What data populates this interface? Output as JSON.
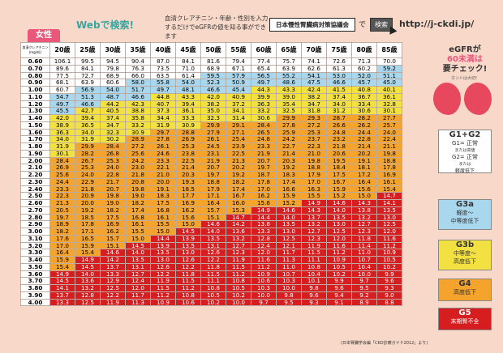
{
  "header": {
    "web_label": "Webで検索!",
    "instruction_line1": "血清クレアチニン・年齢・性別を入力",
    "instruction_line2": "するだけでeGFRの値を知る事ができます",
    "search_box_text": "日本慢性腎臓病対策協議会",
    "de_text": "で",
    "search_button": "検索",
    "url": "http://j-ckdi.jp/"
  },
  "sex_tab": "女性",
  "table": {
    "corner_line1": "血清クレアチニン",
    "corner_line2": "(mg/dL)",
    "ages": [
      "20歳",
      "25歳",
      "30歳",
      "35歳",
      "40歳",
      "45歳",
      "50歳",
      "55歳",
      "60歳",
      "65歳",
      "70歳",
      "75歳",
      "80歳",
      "85歳"
    ],
    "rows": [
      {
        "cr": "0.60",
        "v": [
          "106.1",
          "99.5",
          "94.5",
          "90.4",
          "87.0",
          "84.1",
          "81.6",
          "79.4",
          "77.4",
          "75.7",
          "74.1",
          "72.6",
          "71.3",
          "70.0"
        ]
      },
      {
        "cr": "0.70",
        "v": [
          "89.6",
          "84.1",
          "79.8",
          "76.3",
          "73.5",
          "71.0",
          "68.9",
          "67.1",
          "65.4",
          "63.9",
          "62.6",
          "61.3",
          "60.2",
          "59.2"
        ]
      },
      {
        "cr": "0.80",
        "v": [
          "77.5",
          "72.7",
          "68.9",
          "66.0",
          "63.5",
          "61.4",
          "59.5",
          "57.9",
          "56.5",
          "55.2",
          "54.1",
          "53.0",
          "52.0",
          "51.1"
        ]
      },
      {
        "cr": "0.90",
        "v": [
          "68.1",
          "63.9",
          "60.6",
          "58.0",
          "55.8",
          "54.0",
          "52.3",
          "50.9",
          "49.7",
          "48.6",
          "47.5",
          "46.6",
          "45.7",
          "45.0"
        ]
      },
      {
        "cr": "1.00",
        "v": [
          "60.7",
          "56.9",
          "54.0",
          "51.7",
          "49.7",
          "48.1",
          "46.6",
          "45.4",
          "44.3",
          "43.3",
          "42.4",
          "41.5",
          "40.8",
          "40.1"
        ]
      },
      {
        "cr": "1.10",
        "v": [
          "54.7",
          "51.3",
          "48.7",
          "46.6",
          "44.8",
          "43.3",
          "42.0",
          "40.9",
          "39.9",
          "39.0",
          "38.2",
          "37.4",
          "36.7",
          "36.1"
        ]
      },
      {
        "cr": "1.20",
        "v": [
          "49.7",
          "46.6",
          "44.2",
          "42.3",
          "40.7",
          "39.4",
          "38.2",
          "37.2",
          "36.3",
          "35.4",
          "34.7",
          "34.0",
          "33.4",
          "32.8"
        ]
      },
      {
        "cr": "1.30",
        "v": [
          "45.5",
          "42.7",
          "40.5",
          "38.8",
          "37.3",
          "36.1",
          "35.0",
          "34.1",
          "33.2",
          "32.5",
          "31.8",
          "31.2",
          "30.6",
          "30.1"
        ]
      },
      {
        "cr": "1.40",
        "v": [
          "42.0",
          "39.4",
          "37.4",
          "35.8",
          "34.4",
          "33.3",
          "32.3",
          "31.4",
          "30.6",
          "29.9",
          "29.3",
          "28.7",
          "28.2",
          "27.7"
        ]
      },
      {
        "cr": "1.50",
        "v": [
          "38.9",
          "36.5",
          "34.7",
          "33.2",
          "31.9",
          "30.9",
          "29.9",
          "29.1",
          "28.4",
          "27.8",
          "27.2",
          "26.6",
          "26.2",
          "25.7"
        ]
      },
      {
        "cr": "1.60",
        "v": [
          "36.3",
          "34.0",
          "32.3",
          "30.9",
          "29.7",
          "28.8",
          "27.9",
          "27.1",
          "26.5",
          "25.9",
          "25.3",
          "24.8",
          "24.4",
          "24.0"
        ]
      },
      {
        "cr": "1.70",
        "v": [
          "34.0",
          "31.9",
          "30.2",
          "28.9",
          "27.8",
          "26.9",
          "26.1",
          "25.4",
          "24.8",
          "24.2",
          "23.7",
          "23.2",
          "22.8",
          "22.4"
        ]
      },
      {
        "cr": "1.80",
        "v": [
          "31.9",
          "29.9",
          "28.4",
          "27.2",
          "26.1",
          "25.3",
          "24.5",
          "23.9",
          "23.3",
          "22.7",
          "22.3",
          "21.8",
          "21.4",
          "21.1"
        ]
      },
      {
        "cr": "1.90",
        "v": [
          "30.1",
          "28.2",
          "26.8",
          "25.6",
          "24.6",
          "23.8",
          "23.1",
          "22.5",
          "21.9",
          "21.4",
          "21.0",
          "20.6",
          "20.2",
          "19.8"
        ]
      },
      {
        "cr": "2.00",
        "v": [
          "28.4",
          "26.7",
          "25.3",
          "24.2",
          "23.3",
          "22.5",
          "21.9",
          "21.3",
          "20.7",
          "20.3",
          "19.8",
          "19.5",
          "19.1",
          "18.8"
        ]
      },
      {
        "cr": "2.10",
        "v": [
          "26.9",
          "25.3",
          "24.0",
          "23.0",
          "22.1",
          "21.4",
          "20.7",
          "20.2",
          "19.7",
          "19.2",
          "18.8",
          "18.4",
          "18.1",
          "17.8"
        ]
      },
      {
        "cr": "2.20",
        "v": [
          "25.6",
          "24.0",
          "22.8",
          "21.8",
          "21.0",
          "20.3",
          "19.7",
          "19.2",
          "18.7",
          "18.3",
          "17.9",
          "17.5",
          "17.2",
          "16.9"
        ]
      },
      {
        "cr": "2.30",
        "v": [
          "24.4",
          "22.9",
          "21.7",
          "20.8",
          "20.0",
          "19.3",
          "18.8",
          "18.2",
          "17.8",
          "17.4",
          "17.0",
          "16.7",
          "16.4",
          "16.1"
        ]
      },
      {
        "cr": "2.40",
        "v": [
          "23.3",
          "21.8",
          "20.7",
          "19.8",
          "19.1",
          "18.5",
          "17.9",
          "17.4",
          "17.0",
          "16.6",
          "16.3",
          "15.9",
          "15.6",
          "15.4"
        ]
      },
      {
        "cr": "2.50",
        "v": [
          "22.3",
          "20.9",
          "19.8",
          "19.0",
          "18.3",
          "17.7",
          "17.1",
          "16.7",
          "16.2",
          "15.9",
          "15.5",
          "15.2",
          "15.0",
          "14.7"
        ]
      },
      {
        "cr": "2.60",
        "v": [
          "21.3",
          "20.0",
          "19.0",
          "18.2",
          "17.5",
          "16.9",
          "16.4",
          "16.0",
          "15.6",
          "15.2",
          "14.9",
          "14.6",
          "14.3",
          "14.1"
        ]
      },
      {
        "cr": "2.70",
        "v": [
          "20.5",
          "19.2",
          "18.2",
          "17.4",
          "16.8",
          "16.2",
          "15.7",
          "15.3",
          "14.9",
          "14.6",
          "14.3",
          "14.0",
          "13.8",
          "13.5"
        ]
      },
      {
        "cr": "2.80",
        "v": [
          "19.7",
          "18.5",
          "17.5",
          "16.8",
          "16.1",
          "15.6",
          "15.1",
          "14.7",
          "14.4",
          "14.0",
          "13.7",
          "13.5",
          "13.2",
          "13.0"
        ]
      },
      {
        "cr": "2.90",
        "v": [
          "18.9",
          "17.8",
          "16.9",
          "16.1",
          "15.5",
          "15.0",
          "14.6",
          "14.2",
          "13.8",
          "13.5",
          "13.2",
          "13.0",
          "12.7",
          "12.5"
        ]
      },
      {
        "cr": "3.00",
        "v": [
          "18.2",
          "17.1",
          "16.2",
          "15.5",
          "15.0",
          "14.5",
          "14.0",
          "13.6",
          "13.3",
          "13.0",
          "12.7",
          "12.5",
          "12.3",
          "12.0"
        ]
      },
      {
        "cr": "3.10",
        "v": [
          "17.6",
          "16.5",
          "15.7",
          "15.0",
          "14.4",
          "13.9",
          "13.5",
          "13.2",
          "12.8",
          "12.5",
          "12.3",
          "12.0",
          "11.8",
          "11.6"
        ]
      },
      {
        "cr": "3.20",
        "v": [
          "17.0",
          "15.9",
          "15.1",
          "14.5",
          "13.9",
          "13.5",
          "13.1",
          "12.7",
          "12.4",
          "12.1",
          "11.9",
          "11.6",
          "11.4",
          "11.2"
        ]
      },
      {
        "cr": "3.30",
        "v": [
          "16.4",
          "15.4",
          "14.6",
          "14.0",
          "13.5",
          "13.0",
          "12.6",
          "12.3",
          "12.0",
          "11.7",
          "11.5",
          "11.2",
          "11.0",
          "10.9"
        ]
      },
      {
        "cr": "3.40",
        "v": [
          "15.9",
          "14.9",
          "14.2",
          "13.5",
          "13.0",
          "12.6",
          "12.2",
          "11.9",
          "11.6",
          "11.3",
          "11.1",
          "10.9",
          "10.7",
          "10.5"
        ]
      },
      {
        "cr": "3.50",
        "v": [
          "15.4",
          "14.5",
          "13.7",
          "13.1",
          "12.6",
          "12.2",
          "11.8",
          "11.5",
          "11.2",
          "11.0",
          "10.8",
          "10.5",
          "10.4",
          "10.2"
        ]
      },
      {
        "cr": "3.60",
        "v": [
          "14.9",
          "14.0",
          "13.3",
          "12.7",
          "12.2",
          "11.8",
          "11.5",
          "11.2",
          "10.9",
          "10.7",
          "10.4",
          "10.2",
          "10.0",
          "9.9"
        ]
      },
      {
        "cr": "3.70",
        "v": [
          "14.5",
          "13.6",
          "12.9",
          "12.4",
          "11.9",
          "11.5",
          "11.1",
          "10.8",
          "10.6",
          "10.3",
          "10.1",
          "9.9",
          "9.7",
          "9.6"
        ]
      },
      {
        "cr": "3.80",
        "v": [
          "14.1",
          "13.2",
          "12.5",
          "12.0",
          "11.5",
          "11.2",
          "10.8",
          "10.5",
          "10.3",
          "10.0",
          "9.8",
          "9.6",
          "9.5",
          "9.3"
        ]
      },
      {
        "cr": "3.90",
        "v": [
          "13.7",
          "12.8",
          "12.2",
          "11.7",
          "11.2",
          "10.8",
          "10.5",
          "10.2",
          "10.0",
          "9.8",
          "9.6",
          "9.4",
          "9.2",
          "9.0"
        ]
      },
      {
        "cr": "4.00",
        "v": [
          "13.3",
          "12.5",
          "11.9",
          "11.3",
          "10.9",
          "10.6",
          "10.2",
          "10.0",
          "9.7",
          "9.5",
          "9.3",
          "9.1",
          "8.9",
          "8.8"
        ]
      }
    ]
  },
  "side": {
    "title_line1": "eGFRが",
    "title_line2": "60未満は",
    "title_line3": "要チェック!",
    "kidney_caption": "ホントは大切!",
    "g12": {
      "head": "G1+G2",
      "l1": "G1= 正常",
      "l2": "または高値",
      "l3": "G2= 正常",
      "l4": "または",
      "l5": "軽度低下"
    },
    "g3a": {
      "head": "G3a",
      "l1": "軽度〜",
      "l2": "中等度低下"
    },
    "g3b": {
      "head": "G3b",
      "l1": "中等度〜",
      "l2": "高度低下"
    },
    "g4": {
      "head": "G4",
      "l1": "高度低下"
    },
    "g5": {
      "head": "G5",
      "l1": "末期腎不全"
    }
  },
  "footnote": "(日本腎臓学会編「CKD診療ガイド2012」より)",
  "colors": {
    "g3a": "#a9d8ee",
    "g3b": "#f3e142",
    "g4": "#f4a32c",
    "g5": "#d61e21",
    "pink": "#e9577b"
  }
}
